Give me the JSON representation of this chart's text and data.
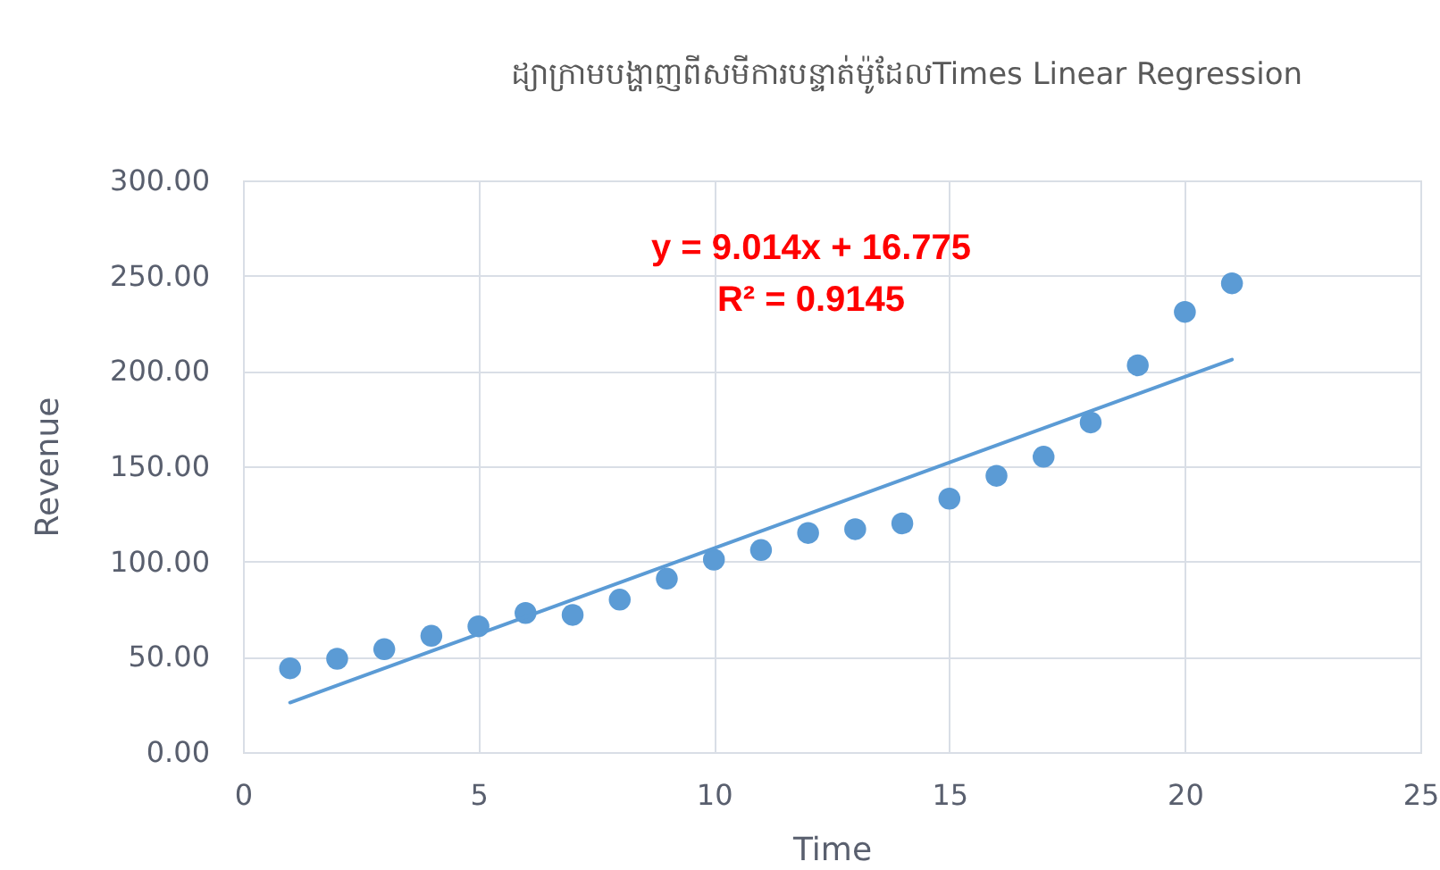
{
  "chart_data": {
    "type": "scatter",
    "title": "ដ្យាក្រាមបង្ហាញពីសមីការបន្ទាត់ម៉ូដែលTimes Linear Regression",
    "xlabel": "Time",
    "ylabel": "Revenue",
    "x": [
      1,
      2,
      3,
      4,
      5,
      6,
      7,
      8,
      9,
      10,
      11,
      12,
      13,
      14,
      15,
      16,
      17,
      18,
      19,
      20,
      21
    ],
    "series": [
      {
        "color": "#5b9bd5",
        "marker": "circle",
        "values": [
          44,
          49,
          54,
          61,
          66,
          73,
          72,
          80,
          91,
          101,
          106,
          115,
          117,
          120,
          133,
          145,
          155,
          173,
          203,
          231,
          246
        ]
      },
      {
        "type": "line",
        "color": "#5b9bd5",
        "marker": "none",
        "line_style": "solid",
        "x": [
          1,
          21
        ],
        "values": [
          26,
          206
        ]
      }
    ],
    "xlim": [
      0,
      25
    ],
    "xticks": [
      0,
      5,
      10,
      15,
      20,
      25
    ],
    "ylim": [
      0,
      300
    ],
    "yticks": [
      {
        "value": 0,
        "label": "0.00"
      },
      {
        "value": 50,
        "label": "50.00"
      },
      {
        "value": 100,
        "label": "100.00"
      },
      {
        "value": 150,
        "label": "150.00"
      },
      {
        "value": 200,
        "label": "200.00"
      },
      {
        "value": 250,
        "label": "250.00"
      },
      {
        "value": 300,
        "label": "300.00"
      }
    ],
    "grid": true,
    "annotations": [
      "y = 9.014x + 16.775",
      "R² = 0.9145"
    ]
  }
}
